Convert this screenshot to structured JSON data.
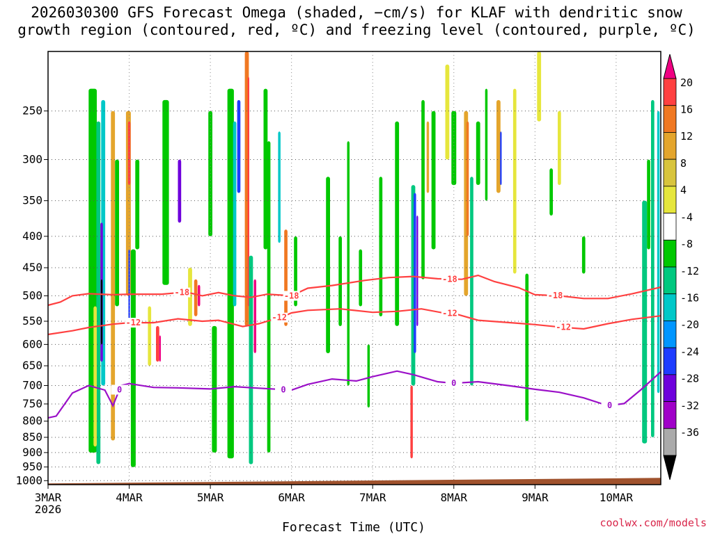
{
  "chart_data": {
    "type": "heatmap",
    "title": "2026030300 GFS Forecast Omega (shaded, −cm/s) for KLAF with dendritic snow growth region (contoured, red, ºC) and freezing level (contoured, purple, ºC)",
    "xlabel": "Forecast Time (UTC)",
    "ylabel": "",
    "credit": "coolwx.com/models",
    "x_ticks": [
      "3MAR",
      "4MAR",
      "5MAR",
      "6MAR",
      "7MAR",
      "8MAR",
      "9MAR",
      "10MAR"
    ],
    "x_year": "2026",
    "xlim_days": [
      0,
      7.55
    ],
    "y_ticks": [
      250,
      300,
      350,
      400,
      450,
      500,
      550,
      600,
      650,
      700,
      750,
      800,
      850,
      900,
      950,
      1000
    ],
    "ylim_hpa": [
      200,
      1015
    ],
    "colorbar": {
      "labels": [
        "20",
        "16",
        "12",
        "8",
        "4",
        "-4",
        "-8",
        "-12",
        "-16",
        "-20",
        "-24",
        "-28",
        "-32",
        "-36"
      ],
      "colors": [
        "#f00082",
        "#ff4040",
        "#f07822",
        "#e4a52c",
        "#d8c43c",
        "#e6e63c",
        "#ffffff",
        "#00c800",
        "#00c87f",
        "#00c8c8",
        "#0096ff",
        "#1e3cff",
        "#6e00dc",
        "#a000c8",
        "#aaaaaa",
        "#000000"
      ]
    },
    "series": [
      {
        "name": "-18",
        "color": "#ff4040",
        "points": [
          [
            0,
            518
          ],
          [
            0.15,
            512
          ],
          [
            0.3,
            500
          ],
          [
            0.5,
            496
          ],
          [
            0.8,
            498
          ],
          [
            1.0,
            497
          ],
          [
            1.4,
            497
          ],
          [
            1.7,
            493
          ],
          [
            1.9,
            500
          ],
          [
            2.1,
            494
          ],
          [
            2.3,
            500
          ],
          [
            2.5,
            503
          ],
          [
            2.7,
            497
          ],
          [
            3.0,
            500
          ],
          [
            3.2,
            486
          ],
          [
            3.5,
            481
          ],
          [
            3.9,
            472
          ],
          [
            4.2,
            467
          ],
          [
            4.5,
            465
          ],
          [
            4.8,
            469
          ],
          [
            5.1,
            470
          ],
          [
            5.3,
            463
          ],
          [
            5.5,
            474
          ],
          [
            5.8,
            485
          ],
          [
            6.0,
            498
          ],
          [
            6.3,
            500
          ],
          [
            6.6,
            505
          ],
          [
            6.9,
            505
          ],
          [
            7.2,
            496
          ],
          [
            7.55,
            484
          ]
        ],
        "labels": [
          [
            1.65,
            "-18"
          ],
          [
            3.0,
            "-18"
          ],
          [
            4.95,
            "-18"
          ],
          [
            6.25,
            "-18"
          ]
        ]
      },
      {
        "name": "-12",
        "color": "#ff4040",
        "points": [
          [
            0,
            578
          ],
          [
            0.3,
            570
          ],
          [
            0.5,
            563
          ],
          [
            0.8,
            556
          ],
          [
            1.0,
            553
          ],
          [
            1.3,
            553
          ],
          [
            1.6,
            545
          ],
          [
            1.9,
            550
          ],
          [
            2.1,
            548
          ],
          [
            2.4,
            561
          ],
          [
            2.6,
            555
          ],
          [
            2.9,
            540
          ],
          [
            3.0,
            533
          ],
          [
            3.2,
            528
          ],
          [
            3.6,
            525
          ],
          [
            4.0,
            532
          ],
          [
            4.3,
            530
          ],
          [
            4.6,
            525
          ],
          [
            4.9,
            534
          ],
          [
            5.0,
            534
          ],
          [
            5.3,
            548
          ],
          [
            5.7,
            553
          ],
          [
            6.0,
            557
          ],
          [
            6.3,
            562
          ],
          [
            6.6,
            566
          ],
          [
            6.9,
            555
          ],
          [
            7.2,
            546
          ],
          [
            7.55,
            539
          ]
        ],
        "labels": [
          [
            1.05,
            "-12"
          ],
          [
            2.85,
            "-12"
          ],
          [
            4.95,
            "-12"
          ],
          [
            6.35,
            "-12"
          ]
        ]
      },
      {
        "name": "0",
        "color": "#9b10c8",
        "points": [
          [
            0,
            790
          ],
          [
            0.1,
            785
          ],
          [
            0.3,
            720
          ],
          [
            0.5,
            700
          ],
          [
            0.7,
            712
          ],
          [
            0.8,
            755
          ],
          [
            0.9,
            700
          ],
          [
            1.0,
            695
          ],
          [
            1.3,
            705
          ],
          [
            1.6,
            706
          ],
          [
            2.0,
            709
          ],
          [
            2.3,
            703
          ],
          [
            2.6,
            707
          ],
          [
            3.0,
            712
          ],
          [
            3.2,
            697
          ],
          [
            3.5,
            683
          ],
          [
            3.8,
            688
          ],
          [
            4.0,
            677
          ],
          [
            4.3,
            663
          ],
          [
            4.5,
            672
          ],
          [
            4.8,
            690
          ],
          [
            5.0,
            694
          ],
          [
            5.3,
            690
          ],
          [
            5.7,
            701
          ],
          [
            6.0,
            710
          ],
          [
            6.3,
            718
          ],
          [
            6.6,
            733
          ],
          [
            6.9,
            755
          ],
          [
            7.1,
            749
          ],
          [
            7.3,
            712
          ],
          [
            7.55,
            665
          ]
        ],
        "labels": [
          [
            0.88,
            "0"
          ],
          [
            2.9,
            "0"
          ],
          [
            5.0,
            "0"
          ],
          [
            6.92,
            "0"
          ]
        ]
      }
    ],
    "surface": {
      "name": "terrain",
      "color": "#a0522d",
      "pressure_hpa": 1000
    }
  }
}
